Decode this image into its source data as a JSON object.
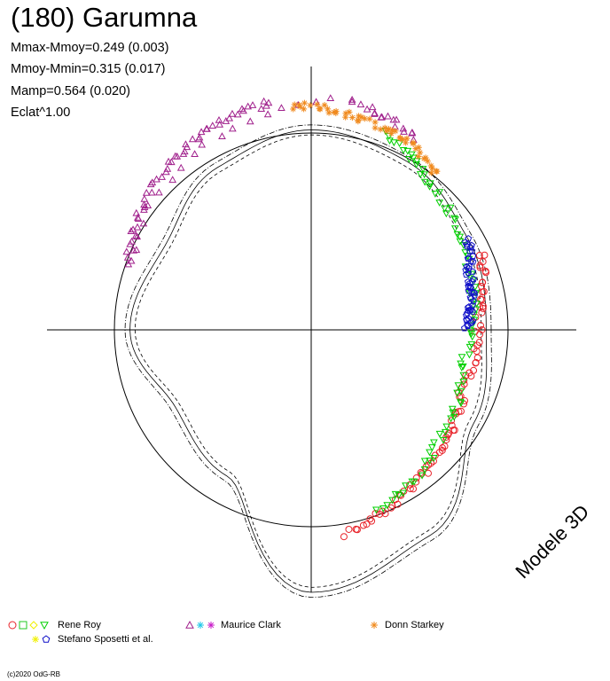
{
  "title": "(180) Garumna",
  "stats": {
    "mmax_mmoy": "Mmax-Mmoy=0.249 (0.003)",
    "mmoy_mmin": "Mmoy-Mmin=0.315 (0.017)",
    "mamp": "Mamp=0.564 (0.020)",
    "eclat": "Eclat^1.00"
  },
  "model_label": "Modele 3D",
  "credit": "(c)2020 OdG-RB",
  "colors": {
    "red": "#e8232a",
    "green": "#22c822",
    "yellow": "#f0f000",
    "green2": "#00d000",
    "blue": "#1010c8",
    "purple": "#a0208c",
    "magenta": "#c81ec8",
    "cyan": "#20c8e8",
    "orange": "#f08a1e",
    "axis": "#000000"
  },
  "legend": [
    {
      "label": "Rene Roy",
      "symbols": [
        "circle:red",
        "square:green",
        "diamond:yellow",
        "triangle-down:green2"
      ]
    },
    {
      "label": "Stefano Sposetti et al.",
      "symbols": [
        "star:yellow",
        "pentagon:blue"
      ]
    },
    {
      "label": "Maurice Clark",
      "symbols": [
        "triangle-up:purple",
        "star:cyan",
        "star:magenta"
      ]
    },
    {
      "label": "Donn Starkey",
      "symbols": [
        "star:orange"
      ]
    }
  ],
  "chart_data": {
    "type": "scatter",
    "polar": true,
    "title": "(180) Garumna",
    "reference_circle_radius_mag": 0.315,
    "model_curve": {
      "label": "Modele 3D",
      "radius_by_angle_deg": [
        [
          0,
          0.28
        ],
        [
          30,
          0.29
        ],
        [
          60,
          0.31
        ],
        [
          90,
          0.32
        ],
        [
          120,
          0.3
        ],
        [
          150,
          0.27
        ],
        [
          180,
          0.29
        ],
        [
          210,
          0.25
        ],
        [
          240,
          0.27
        ],
        [
          270,
          0.42
        ],
        [
          300,
          0.38
        ],
        [
          330,
          0.3
        ],
        [
          360,
          0.28
        ]
      ]
    },
    "series": [
      {
        "name": "Rene Roy",
        "symbol": "circle",
        "color": "red",
        "points_deg_r": [
          [
            -80,
            0.33
          ],
          [
            -60,
            0.3
          ],
          [
            -40,
            0.28
          ],
          [
            -20,
            0.26
          ],
          [
            5,
            0.27
          ],
          [
            25,
            0.3
          ]
        ]
      },
      {
        "name": "Rene Roy",
        "symbol": "triangle-down",
        "color": "green2",
        "points_deg_r": [
          [
            -70,
            0.31
          ],
          [
            -40,
            0.27
          ],
          [
            -10,
            0.25
          ],
          [
            20,
            0.27
          ],
          [
            50,
            0.3
          ],
          [
            70,
            0.34
          ]
        ]
      },
      {
        "name": "Stefano Sposetti et al.",
        "symbol": "pentagon",
        "color": "blue",
        "points_deg_r": [
          [
            0,
            0.25
          ],
          [
            10,
            0.26
          ],
          [
            20,
            0.27
          ],
          [
            30,
            0.29
          ]
        ]
      },
      {
        "name": "Maurice Clark",
        "symbol": "triangle-up",
        "color": "purple",
        "points_deg_r": [
          [
            100,
            0.37
          ],
          [
            120,
            0.36
          ],
          [
            140,
            0.34
          ],
          [
            160,
            0.31
          ],
          [
            80,
            0.37
          ],
          [
            60,
            0.35
          ]
        ]
      },
      {
        "name": "Donn Starkey",
        "symbol": "star",
        "color": "orange",
        "points_deg_r": [
          [
            95,
            0.36
          ],
          [
            80,
            0.35
          ],
          [
            65,
            0.34
          ],
          [
            50,
            0.32
          ]
        ]
      }
    ]
  }
}
